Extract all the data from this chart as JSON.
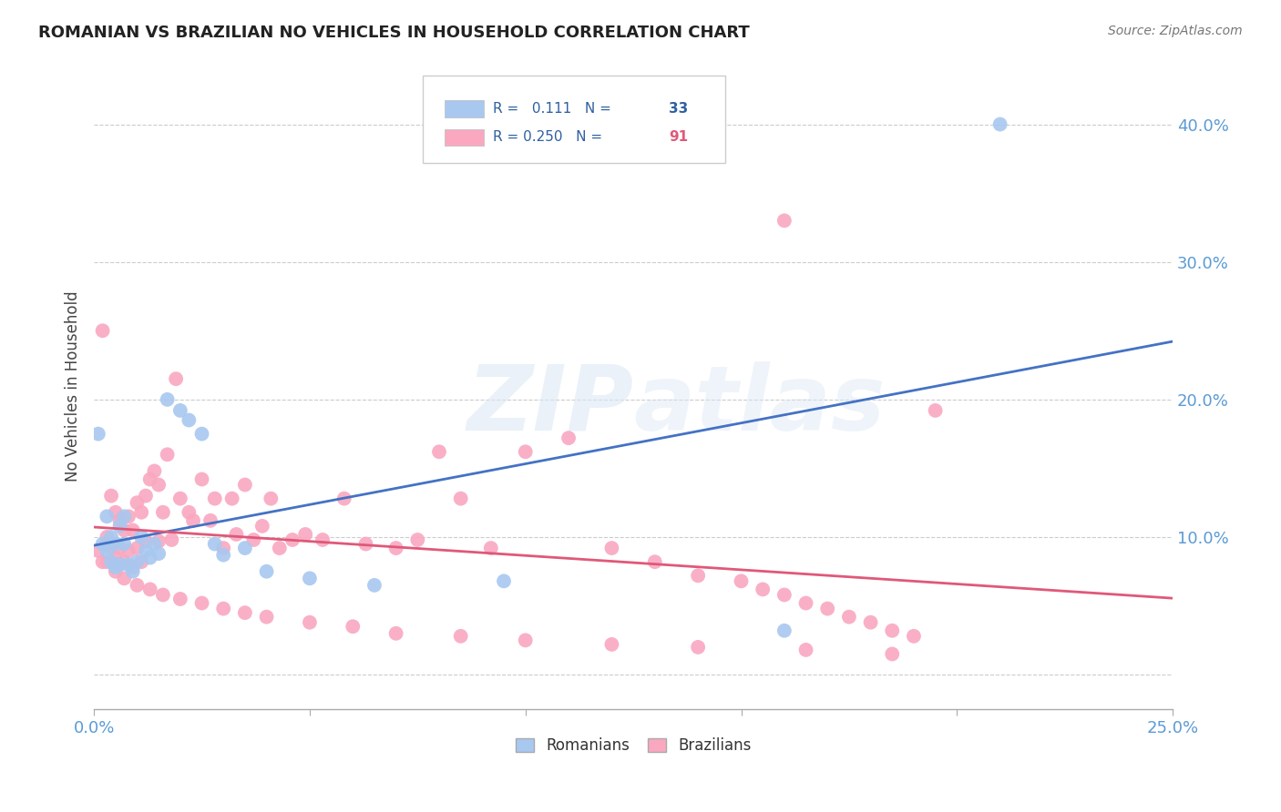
{
  "title": "ROMANIAN VS BRAZILIAN NO VEHICLES IN HOUSEHOLD CORRELATION CHART",
  "source": "Source: ZipAtlas.com",
  "ylabel": "No Vehicles in Household",
  "ytick_labels": [
    "10.0%",
    "20.0%",
    "30.0%",
    "40.0%"
  ],
  "ytick_values": [
    0.1,
    0.2,
    0.3,
    0.4
  ],
  "xlim": [
    0.0,
    0.25
  ],
  "ylim": [
    -0.025,
    0.445
  ],
  "romanian_color": "#A8C8F0",
  "brazilian_color": "#F9A8C0",
  "romanian_line_color": "#4472C4",
  "brazilian_line_color": "#E05878",
  "romanian_R": 0.111,
  "romanian_N": 33,
  "brazilian_R": 0.25,
  "brazilian_N": 91,
  "watermark": "ZIPatlas",
  "rom_x": [
    0.001,
    0.002,
    0.003,
    0.003,
    0.004,
    0.004,
    0.005,
    0.005,
    0.006,
    0.006,
    0.007,
    0.007,
    0.008,
    0.009,
    0.01,
    0.011,
    0.012,
    0.013,
    0.014,
    0.015,
    0.017,
    0.02,
    0.022,
    0.025,
    0.028,
    0.03,
    0.035,
    0.04,
    0.05,
    0.065,
    0.095,
    0.16,
    0.21
  ],
  "rom_y": [
    0.175,
    0.095,
    0.09,
    0.115,
    0.082,
    0.1,
    0.078,
    0.095,
    0.08,
    0.108,
    0.095,
    0.115,
    0.08,
    0.075,
    0.082,
    0.1,
    0.09,
    0.085,
    0.095,
    0.088,
    0.2,
    0.192,
    0.185,
    0.175,
    0.095,
    0.087,
    0.092,
    0.075,
    0.07,
    0.065,
    0.068,
    0.032,
    0.4
  ],
  "bra_x": [
    0.001,
    0.002,
    0.002,
    0.003,
    0.003,
    0.004,
    0.004,
    0.005,
    0.005,
    0.006,
    0.006,
    0.007,
    0.007,
    0.008,
    0.008,
    0.009,
    0.009,
    0.01,
    0.01,
    0.011,
    0.011,
    0.012,
    0.012,
    0.013,
    0.014,
    0.015,
    0.015,
    0.016,
    0.017,
    0.018,
    0.019,
    0.02,
    0.022,
    0.023,
    0.025,
    0.027,
    0.028,
    0.03,
    0.032,
    0.033,
    0.035,
    0.037,
    0.039,
    0.041,
    0.043,
    0.046,
    0.049,
    0.053,
    0.058,
    0.063,
    0.07,
    0.075,
    0.08,
    0.085,
    0.092,
    0.1,
    0.11,
    0.12,
    0.13,
    0.14,
    0.15,
    0.155,
    0.16,
    0.165,
    0.17,
    0.175,
    0.18,
    0.185,
    0.19,
    0.195,
    0.003,
    0.005,
    0.007,
    0.01,
    0.013,
    0.016,
    0.02,
    0.025,
    0.03,
    0.035,
    0.04,
    0.05,
    0.06,
    0.07,
    0.085,
    0.1,
    0.12,
    0.14,
    0.165,
    0.185,
    0.16
  ],
  "bra_y": [
    0.09,
    0.082,
    0.25,
    0.095,
    0.1,
    0.13,
    0.092,
    0.118,
    0.085,
    0.112,
    0.092,
    0.105,
    0.082,
    0.115,
    0.09,
    0.105,
    0.078,
    0.125,
    0.092,
    0.118,
    0.082,
    0.13,
    0.097,
    0.142,
    0.148,
    0.097,
    0.138,
    0.118,
    0.16,
    0.098,
    0.215,
    0.128,
    0.118,
    0.112,
    0.142,
    0.112,
    0.128,
    0.092,
    0.128,
    0.102,
    0.138,
    0.098,
    0.108,
    0.128,
    0.092,
    0.098,
    0.102,
    0.098,
    0.128,
    0.095,
    0.092,
    0.098,
    0.162,
    0.128,
    0.092,
    0.162,
    0.172,
    0.092,
    0.082,
    0.072,
    0.068,
    0.062,
    0.058,
    0.052,
    0.048,
    0.042,
    0.038,
    0.032,
    0.028,
    0.192,
    0.082,
    0.075,
    0.07,
    0.065,
    0.062,
    0.058,
    0.055,
    0.052,
    0.048,
    0.045,
    0.042,
    0.038,
    0.035,
    0.03,
    0.028,
    0.025,
    0.022,
    0.02,
    0.018,
    0.015,
    0.33
  ]
}
